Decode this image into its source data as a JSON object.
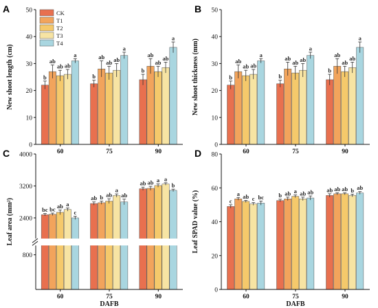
{
  "figure": {
    "panel_letters": [
      "A",
      "B",
      "C",
      "D"
    ],
    "legend": {
      "entries": [
        "CK",
        "T1",
        "T2",
        "T3",
        "T4"
      ]
    },
    "colors": {
      "CK": "#E8704F",
      "T1": "#F2A45C",
      "T2": "#F5C96B",
      "T3": "#F7E4A3",
      "T4": "#A9D6E0",
      "edge": "#555555",
      "break_band": "#ffffff"
    }
  },
  "chart_data": [
    {
      "panel": "A",
      "type": "bar",
      "ylabel": "New shoot length (cm)",
      "xlabel": "",
      "ylim": [
        0,
        50
      ],
      "yticks": [
        0,
        10,
        20,
        30,
        40,
        50
      ],
      "categories": [
        "60",
        "75",
        "90"
      ],
      "series": [
        {
          "name": "CK",
          "values": [
            22,
            22.5,
            24
          ],
          "errors": [
            1.5,
            1.3,
            2.0
          ],
          "letters": [
            "b",
            "b",
            "b"
          ]
        },
        {
          "name": "T1",
          "values": [
            27,
            28,
            29
          ],
          "errors": [
            2.5,
            3.0,
            2.8
          ],
          "letters": [
            "ab",
            "ab",
            "ab"
          ]
        },
        {
          "name": "T2",
          "values": [
            25.5,
            26.5,
            27
          ],
          "errors": [
            2.0,
            2.5,
            2.0
          ],
          "letters": [
            "ab",
            "ab",
            "ab"
          ]
        },
        {
          "name": "T3",
          "values": [
            26,
            27.5,
            28.5
          ],
          "errors": [
            1.8,
            2.5,
            2.0
          ],
          "letters": [
            "ab",
            "ab",
            "ab"
          ]
        },
        {
          "name": "T4",
          "values": [
            31,
            33,
            36
          ],
          "errors": [
            0.8,
            1.2,
            2.0
          ],
          "letters": [
            "a",
            "a",
            "a"
          ]
        }
      ]
    },
    {
      "panel": "B",
      "type": "bar",
      "ylabel": "New shoot thickness (mm)",
      "xlabel": "",
      "ylim": [
        0,
        50
      ],
      "yticks": [
        0,
        10,
        20,
        30,
        40,
        50
      ],
      "categories": [
        "60",
        "75",
        "90"
      ],
      "series": [
        {
          "name": "CK",
          "values": [
            22,
            22.5,
            24
          ],
          "errors": [
            1.5,
            1.3,
            2.0
          ],
          "letters": [
            "b",
            "b",
            "b"
          ]
        },
        {
          "name": "T1",
          "values": [
            27,
            28,
            29
          ],
          "errors": [
            2.5,
            2.5,
            2.8
          ],
          "letters": [
            "ab",
            "ab",
            "ab"
          ]
        },
        {
          "name": "T2",
          "values": [
            25.5,
            26.5,
            27
          ],
          "errors": [
            2.0,
            2.5,
            2.0
          ],
          "letters": [
            "ab",
            "ab",
            "ab"
          ]
        },
        {
          "name": "T3",
          "values": [
            26,
            27.5,
            28.5
          ],
          "errors": [
            1.8,
            2.5,
            2.0
          ],
          "letters": [
            "ab",
            "ab",
            "ab"
          ]
        },
        {
          "name": "T4",
          "values": [
            31,
            33,
            36
          ],
          "errors": [
            0.8,
            1.2,
            2.0
          ],
          "letters": [
            "a",
            "a",
            "a"
          ]
        }
      ]
    },
    {
      "panel": "C",
      "type": "bar",
      "ylabel": "Leaf area (mm²)",
      "xlabel": "DAFB",
      "axis_break": [
        1000,
        1900
      ],
      "yticks": [
        800,
        2400,
        3200,
        4000
      ],
      "categories": [
        "60",
        "75",
        "90"
      ],
      "series": [
        {
          "name": "CK",
          "values": [
            2480,
            2760,
            3130
          ],
          "errors": [
            30,
            40,
            40
          ],
          "letters": [
            "bc",
            "ab",
            "ab"
          ]
        },
        {
          "name": "T1",
          "values": [
            2490,
            2780,
            3140
          ],
          "errors": [
            30,
            40,
            50
          ],
          "letters": [
            "bc",
            "b",
            "ab"
          ]
        },
        {
          "name": "T2",
          "values": [
            2540,
            2820,
            3210
          ],
          "errors": [
            60,
            60,
            40
          ],
          "letters": [
            "ab",
            "ab",
            "a"
          ]
        },
        {
          "name": "T3",
          "values": [
            2610,
            2960,
            3250
          ],
          "errors": [
            40,
            40,
            30
          ],
          "letters": [
            "a",
            "a",
            "a"
          ]
        },
        {
          "name": "T4",
          "values": [
            2400,
            2800,
            3090
          ],
          "errors": [
            40,
            70,
            30
          ],
          "letters": [
            "c",
            "ab",
            "b"
          ]
        }
      ]
    },
    {
      "panel": "D",
      "type": "bar",
      "ylabel": "Leaf SPAD value (%)",
      "xlabel": "DAFB",
      "ylim": [
        0,
        80
      ],
      "yticks": [
        0,
        20,
        40,
        60,
        80
      ],
      "categories": [
        "60",
        "75",
        "90"
      ],
      "series": [
        {
          "name": "CK",
          "values": [
            49,
            52.5,
            55.5
          ],
          "errors": [
            1.0,
            0.8,
            1.0
          ],
          "letters": [
            "c",
            "b",
            "ab"
          ]
        },
        {
          "name": "T1",
          "values": [
            53.5,
            53.5,
            56.5
          ],
          "errors": [
            0.8,
            1.0,
            0.6
          ],
          "letters": [
            "a",
            "ab",
            "ab"
          ]
        },
        {
          "name": "T2",
          "values": [
            52,
            55,
            56.5
          ],
          "errors": [
            0.6,
            0.8,
            0.6
          ],
          "letters": [
            "ab",
            "a",
            "ab"
          ]
        },
        {
          "name": "T3",
          "values": [
            50.5,
            53.5,
            55.5
          ],
          "errors": [
            0.8,
            1.0,
            0.8
          ],
          "letters": [
            "c",
            "ab",
            "b"
          ]
        },
        {
          "name": "T4",
          "values": [
            51,
            54,
            57
          ],
          "errors": [
            1.2,
            1.2,
            0.8
          ],
          "letters": [
            "bc",
            "ab",
            "ab"
          ]
        }
      ]
    }
  ]
}
